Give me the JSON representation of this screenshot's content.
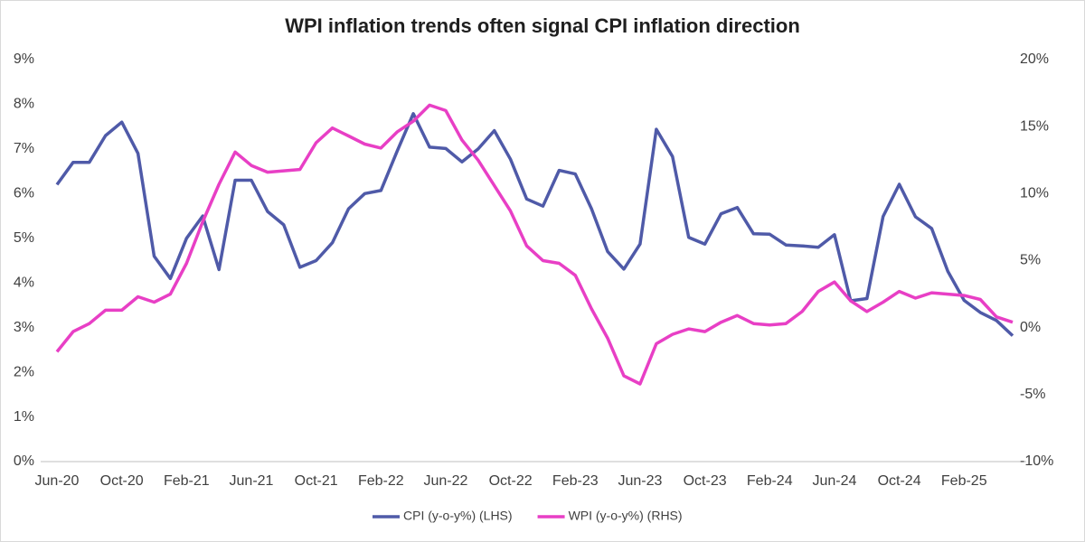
{
  "chart_data": {
    "type": "line",
    "title": "WPI inflation trends often signal CPI inflation direction",
    "categories": [
      "Jun-20",
      null,
      null,
      null,
      "Oct-20",
      null,
      null,
      null,
      "Feb-21",
      null,
      null,
      null,
      "Jun-21",
      null,
      null,
      null,
      "Oct-21",
      null,
      null,
      null,
      "Feb-22",
      null,
      null,
      null,
      "Jun-22",
      null,
      null,
      null,
      "Oct-22",
      null,
      null,
      null,
      "Feb-23",
      null,
      null,
      null,
      "Jun-23",
      null,
      null,
      null,
      "Oct-23",
      null,
      null,
      null,
      "Feb-24",
      null,
      null,
      null,
      "Jun-24",
      null,
      null,
      null,
      "Oct-24",
      null,
      null,
      null,
      "Feb-25",
      null,
      null,
      null
    ],
    "series": [
      {
        "name": "CPI (y-o-y%) (LHS)",
        "color": "#4f5aa8",
        "axis": "y",
        "values": [
          6.2,
          6.7,
          6.7,
          7.3,
          7.6,
          6.9,
          4.6,
          4.1,
          5.0,
          5.5,
          4.3,
          6.3,
          6.3,
          5.6,
          5.3,
          4.35,
          4.5,
          4.9,
          5.66,
          6.0,
          6.07,
          6.95,
          7.79,
          7.04,
          7.01,
          6.71,
          7.0,
          7.41,
          6.77,
          5.88,
          5.72,
          6.52,
          6.44,
          5.66,
          4.7,
          4.31,
          4.87,
          7.44,
          6.83,
          5.02,
          4.87,
          5.55,
          5.69,
          5.1,
          5.09,
          4.85,
          4.83,
          4.8,
          5.08,
          3.6,
          3.65,
          5.49,
          6.21,
          5.48,
          5.22,
          4.26,
          3.61,
          3.34,
          3.16,
          2.82
        ]
      },
      {
        "name": "WPI (y-o-y%) (RHS)",
        "color": "#e83fc5",
        "axis": "y2",
        "values": [
          -1.8,
          -0.3,
          0.3,
          1.3,
          1.3,
          2.3,
          1.9,
          2.5,
          4.8,
          7.9,
          10.7,
          13.1,
          12.1,
          11.6,
          11.7,
          11.8,
          13.8,
          14.9,
          14.3,
          13.7,
          13.4,
          14.6,
          15.4,
          16.6,
          16.2,
          14.0,
          12.5,
          10.6,
          8.7,
          6.1,
          5.0,
          4.8,
          3.9,
          1.4,
          -0.8,
          -3.6,
          -4.2,
          -1.2,
          -0.5,
          -0.1,
          -0.3,
          0.4,
          0.9,
          0.3,
          0.2,
          0.3,
          1.2,
          2.7,
          3.4,
          2.0,
          1.2,
          1.9,
          2.7,
          2.2,
          2.6,
          2.5,
          2.4,
          2.1,
          0.8,
          0.4
        ]
      }
    ],
    "ylim": [
      0,
      9
    ],
    "yticks": [
      {
        "value": 0,
        "label": "0%"
      },
      {
        "value": 1,
        "label": "1%"
      },
      {
        "value": 2,
        "label": "2%"
      },
      {
        "value": 3,
        "label": "3%"
      },
      {
        "value": 4,
        "label": "4%"
      },
      {
        "value": 5,
        "label": "5%"
      },
      {
        "value": 6,
        "label": "6%"
      },
      {
        "value": 7,
        "label": "7%"
      },
      {
        "value": 8,
        "label": "8%"
      },
      {
        "value": 9,
        "label": "9%"
      }
    ],
    "y2lim": [
      -10,
      20
    ],
    "y2ticks": [
      {
        "value": -10,
        "label": "-10%"
      },
      {
        "value": -5,
        "label": "-5%"
      },
      {
        "value": 0,
        "label": "0%"
      },
      {
        "value": 5,
        "label": "5%"
      },
      {
        "value": 10,
        "label": "10%"
      },
      {
        "value": 15,
        "label": "15%"
      },
      {
        "value": 20,
        "label": "20%"
      }
    ],
    "grid": false,
    "legend": "bottom"
  }
}
